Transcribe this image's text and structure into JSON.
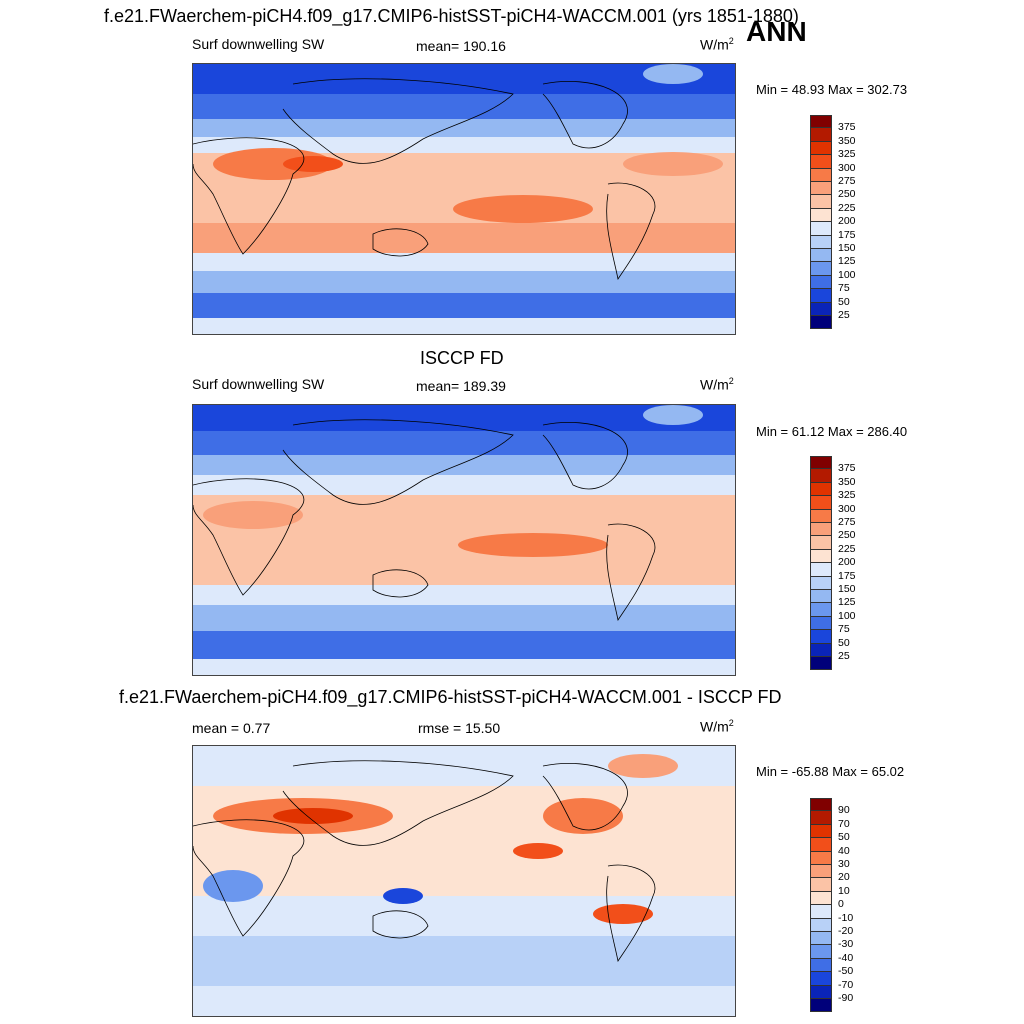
{
  "header": {
    "title": "f.e21.FWaerchem-piCH4.f09_g17.CMIP6-histSST-piCH4-WACCM.001 (yrs 1851-1880)",
    "season": "ANN"
  },
  "panels": [
    {
      "variable": "Surf downwelling SW",
      "stat": "mean= 190.16",
      "units": "W/m",
      "units_sup": "2",
      "minmax": "Min =  48.93 Max = 302.73",
      "colorbar_labels": [
        "375",
        "350",
        "325",
        "300",
        "275",
        "250",
        "225",
        "200",
        "175",
        "150",
        "125",
        "100",
        "75",
        "50",
        "25"
      ]
    },
    {
      "title": "ISCCP FD",
      "variable": "Surf downwelling SW",
      "stat": "mean= 189.39",
      "units": "W/m",
      "units_sup": "2",
      "minmax": "Min =  61.12 Max = 286.40",
      "colorbar_labels": [
        "375",
        "350",
        "325",
        "300",
        "275",
        "250",
        "225",
        "200",
        "175",
        "150",
        "125",
        "100",
        "75",
        "50",
        "25"
      ]
    },
    {
      "title": "f.e21.FWaerchem-piCH4.f09_g17.CMIP6-histSST-piCH4-WACCM.001 - ISCCP FD",
      "stat_left": "mean =   0.77",
      "stat_mid": "rmse =  15.50",
      "units": "W/m",
      "units_sup": "2",
      "minmax": "Min = -65.88 Max =  65.02",
      "colorbar_labels": [
        "90",
        "70",
        "50",
        "40",
        "30",
        "20",
        "10",
        "0",
        "-10",
        "-20",
        "-30",
        "-40",
        "-50",
        "-70",
        "-90"
      ]
    }
  ],
  "colors": {
    "seq": [
      "#800000",
      "#b31a00",
      "#e03300",
      "#f24f1a",
      "#f77a47",
      "#f9a07a",
      "#fbc3a6",
      "#fde3d2",
      "#dde9fb",
      "#b8d1f7",
      "#94b8f2",
      "#6b97ee",
      "#3f6ee6",
      "#1a46db",
      "#0a24b8",
      "#00007a"
    ]
  }
}
